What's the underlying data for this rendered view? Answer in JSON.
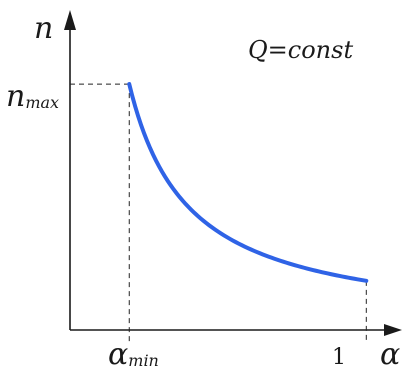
{
  "chart_data": {
    "type": "line",
    "axes": {
      "x_symbol": "α",
      "y_symbol": "n"
    },
    "x_ticks": {
      "alpha_min": {
        "base": "α",
        "sub": "min"
      },
      "one": "1"
    },
    "y_ticks": {
      "n_max": {
        "base": "n",
        "sub": "max"
      }
    },
    "annotation": "Q=const",
    "series": [
      {
        "color": "#2f63e6",
        "x": [
          0.2,
          0.3,
          0.4,
          0.5,
          0.6,
          0.7,
          0.8,
          0.9,
          1.0
        ],
        "y": [
          1.0,
          0.667,
          0.5,
          0.4,
          0.333,
          0.286,
          0.25,
          0.222,
          0.2
        ]
      }
    ],
    "xlim": [
      0,
      1.08
    ],
    "ylim": [
      0,
      1.22
    ],
    "grid": false
  }
}
